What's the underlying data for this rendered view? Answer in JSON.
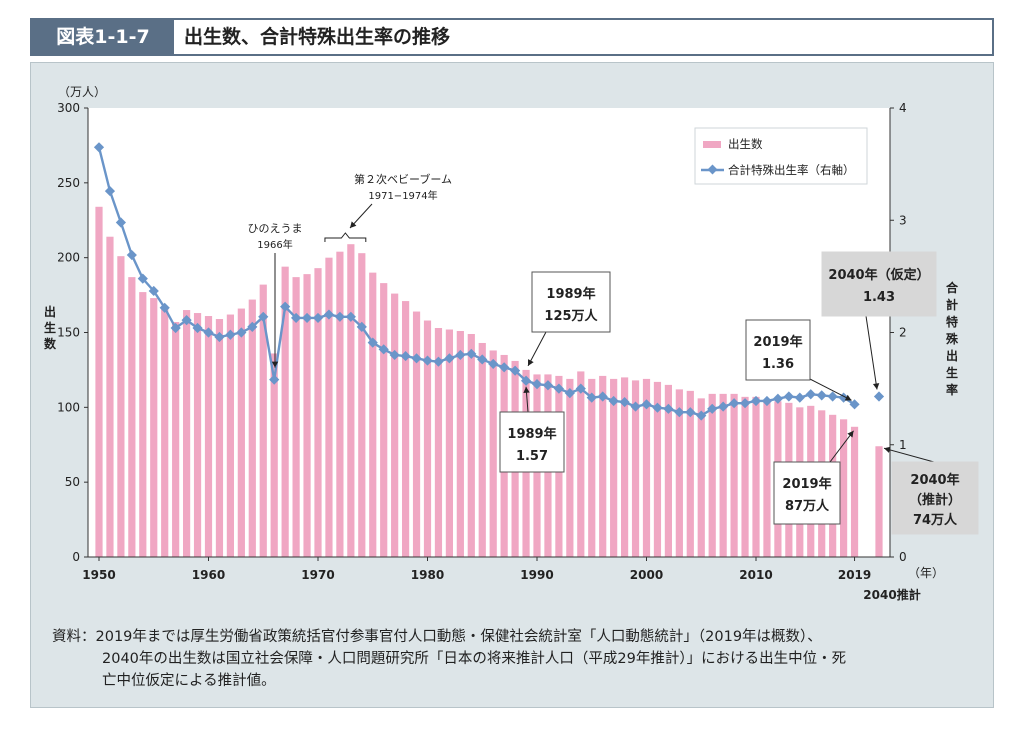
{
  "figure": {
    "number": "図表1-1-7",
    "title": "出生数、合計特殊出生率の推移"
  },
  "chart_data": {
    "type": "bar",
    "x": [
      1950,
      1951,
      1952,
      1953,
      1954,
      1955,
      1956,
      1957,
      1958,
      1959,
      1960,
      1961,
      1962,
      1963,
      1964,
      1965,
      1966,
      1967,
      1968,
      1969,
      1970,
      1971,
      1972,
      1973,
      1974,
      1975,
      1976,
      1977,
      1978,
      1979,
      1980,
      1981,
      1982,
      1983,
      1984,
      1985,
      1986,
      1987,
      1988,
      1989,
      1990,
      1991,
      1992,
      1993,
      1994,
      1995,
      1996,
      1997,
      1998,
      1999,
      2000,
      2001,
      2002,
      2003,
      2004,
      2005,
      2006,
      2007,
      2008,
      2009,
      2010,
      2011,
      2012,
      2013,
      2014,
      2015,
      2016,
      2017,
      2018,
      2019
    ],
    "series": [
      {
        "name": "出生数",
        "axis": "left",
        "type": "bar",
        "color": "#f0a7c3",
        "values": [
          234,
          214,
          201,
          187,
          177,
          173,
          167,
          157,
          165,
          163,
          161,
          159,
          162,
          166,
          172,
          182,
          136,
          194,
          187,
          189,
          193,
          200,
          204,
          209,
          203,
          190,
          183,
          176,
          171,
          164,
          158,
          153,
          152,
          151,
          149,
          143,
          138,
          135,
          131,
          125,
          122,
          122,
          121,
          119,
          124,
          119,
          121,
          119,
          120,
          118,
          119,
          117,
          115,
          112,
          111,
          106,
          109,
          109,
          109,
          107,
          107,
          105,
          104,
          103,
          100,
          101,
          98,
          95,
          92,
          87
        ]
      },
      {
        "name": "合計特殊出生率（右軸）",
        "axis": "right",
        "type": "line",
        "color": "#6a95c9",
        "values": [
          3.65,
          3.26,
          2.98,
          2.69,
          2.48,
          2.37,
          2.22,
          2.04,
          2.11,
          2.04,
          2.0,
          1.96,
          1.98,
          2.0,
          2.05,
          2.14,
          1.58,
          2.23,
          2.13,
          2.13,
          2.13,
          2.16,
          2.14,
          2.14,
          2.05,
          1.91,
          1.85,
          1.8,
          1.79,
          1.77,
          1.75,
          1.74,
          1.77,
          1.8,
          1.81,
          1.76,
          1.72,
          1.69,
          1.66,
          1.57,
          1.54,
          1.53,
          1.5,
          1.46,
          1.5,
          1.42,
          1.43,
          1.39,
          1.38,
          1.34,
          1.36,
          1.33,
          1.32,
          1.29,
          1.29,
          1.26,
          1.32,
          1.34,
          1.37,
          1.37,
          1.39,
          1.39,
          1.41,
          1.43,
          1.42,
          1.45,
          1.44,
          1.43,
          1.42,
          1.36
        ]
      }
    ],
    "projection": {
      "label": "2040推計",
      "births": 74,
      "tfr": 1.43
    },
    "y_left": {
      "label": "出生数",
      "unit": "（万人）",
      "lim": [
        0,
        300
      ],
      "ticks": [
        "0",
        "50",
        "100",
        "150",
        "200",
        "250",
        "300"
      ]
    },
    "y_right": {
      "label": "合計特殊出生率",
      "lim": [
        0,
        4
      ],
      "ticks": [
        "0",
        "1",
        "2",
        "3",
        "4"
      ]
    },
    "x_ticks": [
      "1950",
      "1960",
      "1970",
      "1980",
      "1990",
      "2000",
      "2010",
      "2019"
    ],
    "x_unit": "（年）",
    "x_extra_tick": "2040推計",
    "legend": {
      "position": "top-right",
      "bar": "出生数",
      "line": "合計特殊出生率（右軸）"
    },
    "annotations": {
      "baby_boom_title": "第２次ベビーブーム",
      "baby_boom_years": "1971−1974年",
      "hinoe_title": "ひのえうま",
      "hinoe_year": "1966年",
      "box_1989_births": [
        "1989年",
        "125万人"
      ],
      "box_1989_tfr": [
        "1989年",
        "1.57"
      ],
      "box_2019_tfr": [
        "2019年",
        "1.36"
      ],
      "box_2019_births": [
        "2019年",
        "87万人"
      ],
      "box_2040_tfr": [
        "2040年（仮定）",
        "1.43"
      ],
      "box_2040_births": [
        "2040年",
        "（推計）",
        "74万人"
      ]
    }
  },
  "source_note": {
    "line1": "資料：2019年までは厚生労働省政策統括官付参事官付人口動態・保健社会統計室「人口動態統計」（2019年は概数）、",
    "line2": "2040年の出生数は国立社会保障・人口問題研究所「日本の将来推計人口（平成29年推計）」における出生中位・死",
    "line3": "亡中位仮定による推計値。"
  }
}
